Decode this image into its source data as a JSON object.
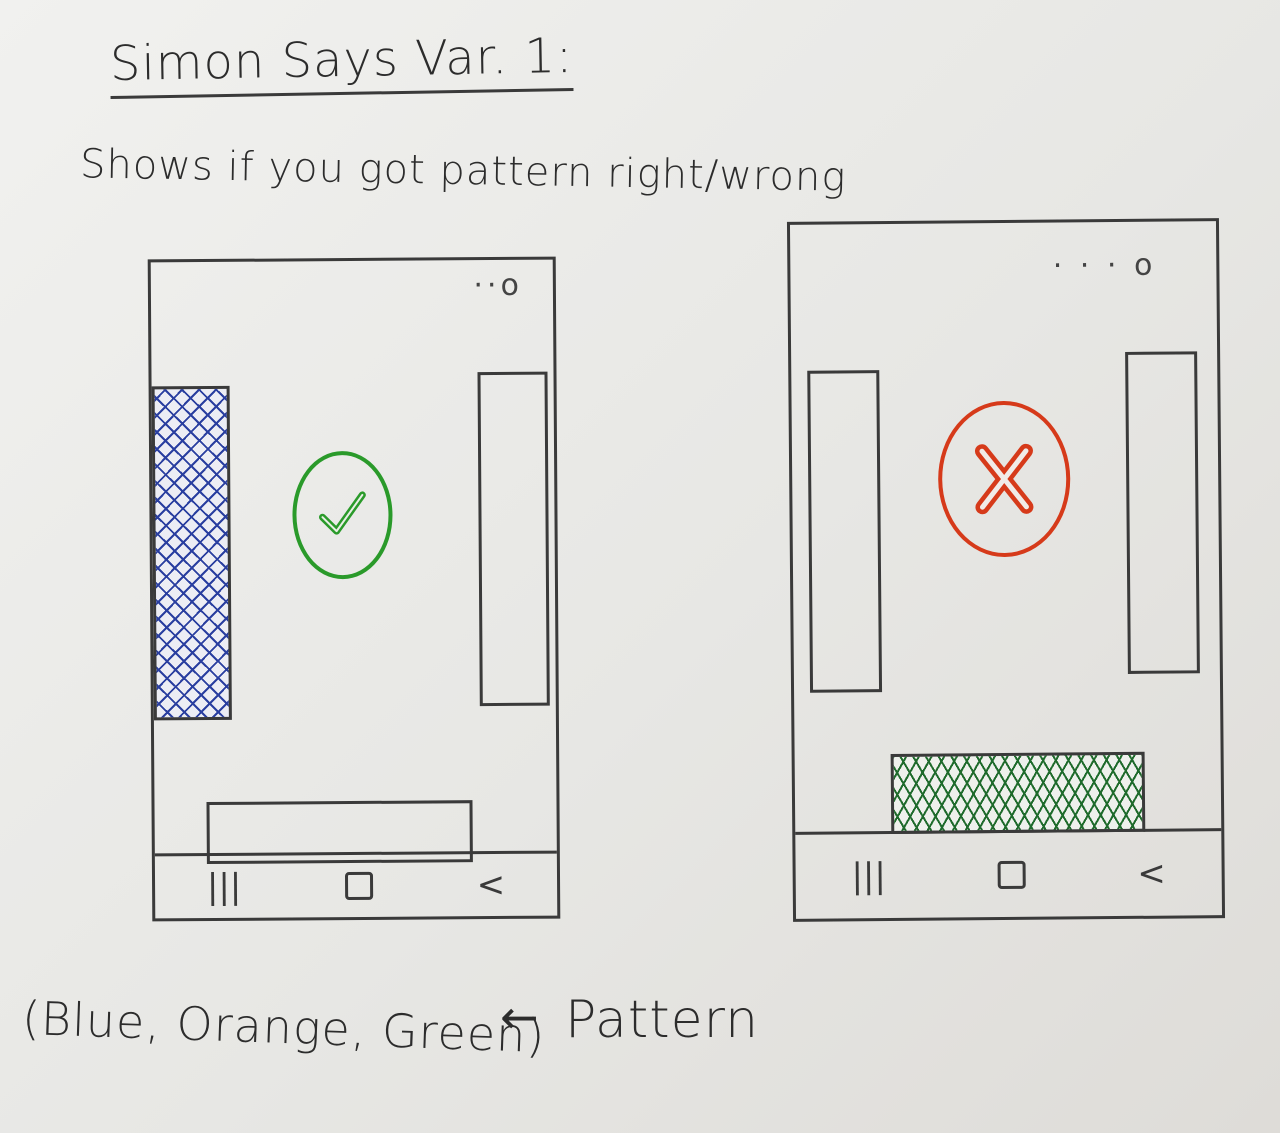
{
  "title": "Simon Says Var. 1:",
  "subtitle": "Shows if you got pattern right/wrong",
  "caption": {
    "sequence": "(Blue, Orange, Green)",
    "arrow": "←",
    "label": "Pattern"
  },
  "colors": {
    "ink": "#3a3a3a",
    "blue": "#2a3fa0",
    "green_check": "#2a9a2a",
    "red_x": "#d63a1a",
    "green_hatch": "#1f6b2c"
  },
  "phones": {
    "correct": {
      "status_dots": "··o",
      "feedback_icon": "checkmark-icon",
      "nav": {
        "recents": "|||",
        "back": "<"
      }
    },
    "wrong": {
      "status_dots": "· · · o",
      "feedback_icon": "x-icon",
      "nav": {
        "recents": "|||",
        "back": "<"
      }
    }
  }
}
